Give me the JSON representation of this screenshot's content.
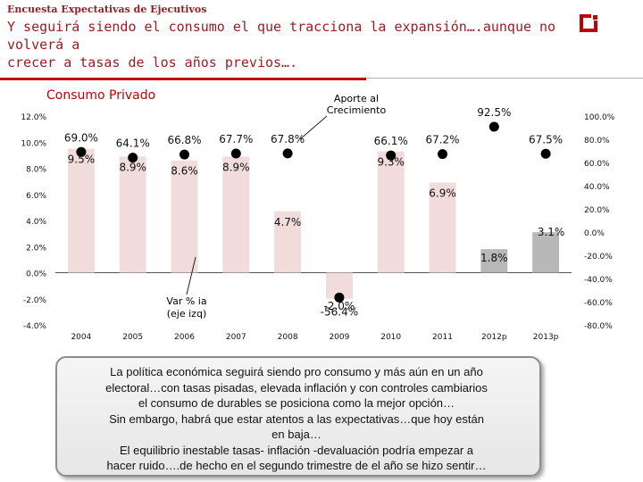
{
  "header": {
    "survey_label": "Encuesta Expectativas de Ejecutivos",
    "headline_line1": "Y seguirá siendo el consumo el que tracciona la expansión….aunque no volverá a",
    "headline_line2": "crecer a tasas de los años previos…."
  },
  "chart_data": {
    "type": "bar",
    "title": "Consumo Privado",
    "categories": [
      "2004",
      "2005",
      "2006",
      "2007",
      "2008",
      "2009",
      "2010",
      "2011",
      "2012p",
      "2013p"
    ],
    "series": [
      {
        "name": "Var % ia (eje izq)",
        "axis": "left",
        "values": [
          9.5,
          8.9,
          8.6,
          8.9,
          4.7,
          -2.0,
          9.3,
          6.9,
          1.8,
          3.1
        ],
        "labels": [
          "9.5%",
          "8.9%",
          "8.6%",
          "8.9%",
          "4.7%",
          "-2.0%",
          "9.3%",
          "6.9%",
          "1.8%",
          "3.1%"
        ]
      },
      {
        "name": "Aporte al Crecimiento",
        "axis": "right",
        "values": [
          69.0,
          64.1,
          66.8,
          67.7,
          67.8,
          -56.4,
          66.1,
          67.2,
          92.5,
          67.5
        ],
        "labels": [
          "69.0%",
          "64.1%",
          "66.8%",
          "67.7%",
          "67.8%",
          "-56.4%",
          "66.1%",
          "67.2%",
          "92.5%",
          "67.5%"
        ]
      }
    ],
    "ylim_left": [
      -4,
      12
    ],
    "yticks_left": [
      "12.0%",
      "10.0%",
      "8.0%",
      "6.0%",
      "4.0%",
      "2.0%",
      "0.0%",
      "-2.0%",
      "-4.0%"
    ],
    "ylim_right": [
      -80,
      100
    ],
    "yticks_right": [
      "100.0%",
      "80.0%",
      "60.0%",
      "40.0%",
      "20.0%",
      "0.0%",
      "-20.0%",
      "-40.0%",
      "-60.0%",
      "-80.0%"
    ],
    "annotations": {
      "aporte": "Aporte al Crecimiento",
      "var_line1": "Var % ia",
      "var_line2": "(eje izq)"
    },
    "colors": {
      "bar": "#f2dcdb",
      "bar_projection": "#b8b8b8",
      "marker": "#000000",
      "text": "#111111"
    }
  },
  "notes": {
    "lines": [
      "La política económica seguirá siendo pro consumo y más aún en un año",
      "electoral…con tasas pisadas, elevada inflación y con controles cambiarios",
      "el consumo de durables se posiciona como la mejor opción…",
      "Sin embargo, habrá que estar atentos a las expectativas…que hoy están",
      "en baja…",
      "El equilibrio inestable tasas- inflación -devaluación podría empezar a",
      "hacer ruido….de hecho en el segundo trimestre de el año se hizo sentir…"
    ]
  }
}
